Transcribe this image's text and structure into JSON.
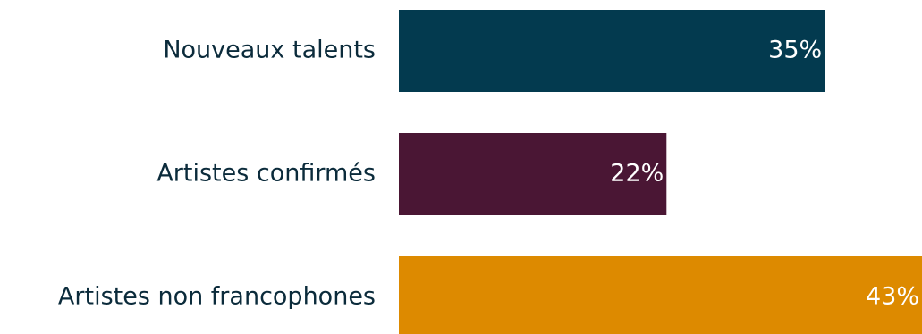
{
  "chart_data": {
    "type": "bar",
    "orientation": "horizontal",
    "title": "",
    "xlabel": "",
    "ylabel": "",
    "grid": false,
    "categories": [
      "Nouveaux talents",
      "Artistes confirmés",
      "Artistes non francophones"
    ],
    "values": [
      35,
      22,
      43
    ],
    "value_labels": [
      "35%",
      "22%",
      "43%"
    ],
    "colors": [
      "#033a4f",
      "#4a1634",
      "#dd8a00"
    ],
    "xlim": [
      0,
      43
    ]
  }
}
